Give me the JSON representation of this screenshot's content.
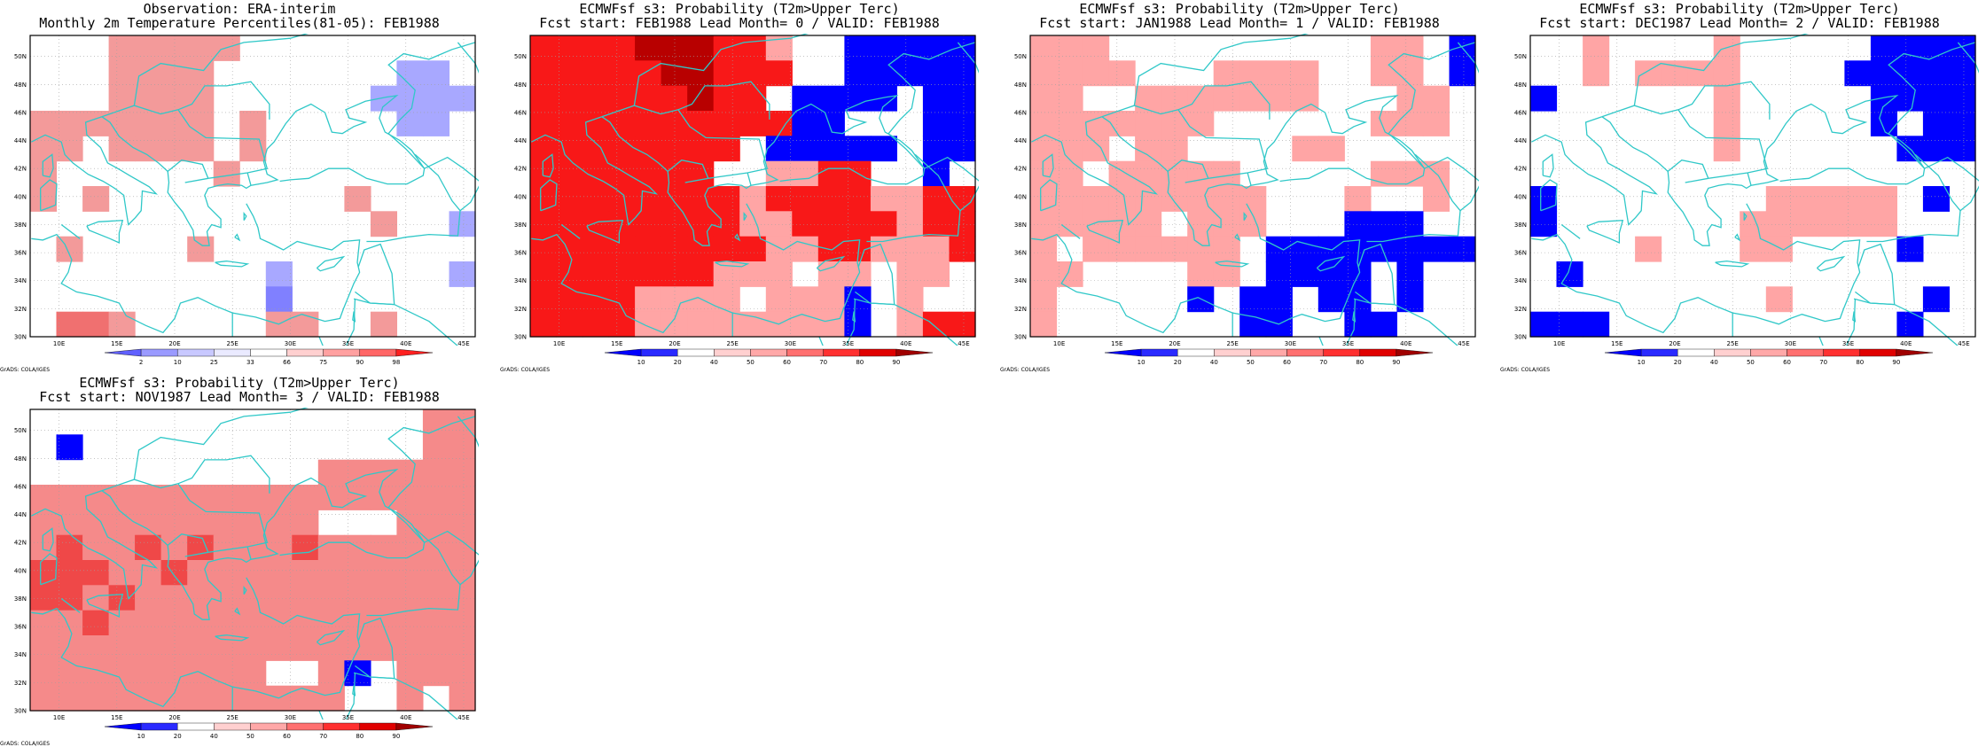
{
  "panels": [
    {
      "id": "obs",
      "title1": "Observation: ERA-interim",
      "title2": "Monthly 2m Temperature Percentiles(81-05): FEB1988",
      "colorbar_labels": [
        "2",
        "10",
        "25",
        "33",
        "66",
        "75",
        "90",
        "98"
      ],
      "colorbar_colors": [
        "#6060ff",
        "#9a9aff",
        "#c8c8ff",
        "#eaeaff",
        "#ffffff",
        "#ffd0d0",
        "#ffa0a0",
        "#ff6666",
        "#ff2020"
      ],
      "credit": "GrADS: COLA/IGES"
    },
    {
      "id": "lead0",
      "title1": "ECMWFsf s3: Probability (T2m>Upper Terc)",
      "title2": "Fcst start: FEB1988  Lead Month= 0 / VALID: FEB1988",
      "colorbar_labels": [
        "10",
        "20",
        "40",
        "50",
        "60",
        "70",
        "80",
        "90"
      ],
      "colorbar_colors": [
        "#0000ff",
        "#2a2aff",
        "#ffffff",
        "#ffd0d0",
        "#ffa8a8",
        "#ff7070",
        "#ff3030",
        "#e00000",
        "#a00000"
      ],
      "credit": "GrADS: COLA/IGES"
    },
    {
      "id": "lead1",
      "title1": "ECMWFsf s3: Probability (T2m>Upper Terc)",
      "title2": "Fcst start: JAN1988  Lead Month= 1 / VALID: FEB1988",
      "colorbar_labels": [
        "10",
        "20",
        "40",
        "50",
        "60",
        "70",
        "80",
        "90"
      ],
      "colorbar_colors": [
        "#0000ff",
        "#2a2aff",
        "#ffffff",
        "#ffd0d0",
        "#ffa8a8",
        "#ff7070",
        "#ff3030",
        "#e00000",
        "#a00000"
      ],
      "credit": "GrADS: COLA/IGES"
    },
    {
      "id": "lead2",
      "title1": "ECMWFsf s3: Probability (T2m>Upper Terc)",
      "title2": "Fcst start: DEC1987  Lead Month= 2 / VALID: FEB1988",
      "colorbar_labels": [
        "10",
        "20",
        "40",
        "50",
        "60",
        "70",
        "80",
        "90"
      ],
      "colorbar_colors": [
        "#0000ff",
        "#2a2aff",
        "#ffffff",
        "#ffd0d0",
        "#ffa8a8",
        "#ff7070",
        "#ff3030",
        "#e00000",
        "#a00000"
      ],
      "credit": "GrADS: COLA/IGES"
    },
    {
      "id": "lead3",
      "title1": "ECMWFsf s3: Probability (T2m>Upper Terc)",
      "title2": "Fcst start: NOV1987  Lead Month= 3 / VALID: FEB1988",
      "colorbar_labels": [
        "10",
        "20",
        "40",
        "50",
        "60",
        "70",
        "80",
        "90"
      ],
      "colorbar_colors": [
        "#0000ff",
        "#2a2aff",
        "#ffffff",
        "#ffd0d0",
        "#ffa8a8",
        "#ff7070",
        "#ff3030",
        "#e00000",
        "#a00000"
      ],
      "credit": "GrADS: COLA/IGES"
    }
  ],
  "map": {
    "lon_range": [
      7.5,
      46
    ],
    "lat_range": [
      30,
      51.5
    ],
    "lon_labels": [
      "10E",
      "15E",
      "20E",
      "25E",
      "30E",
      "35E",
      "40E",
      "45E"
    ],
    "lat_labels": [
      "30N",
      "32N",
      "34N",
      "36N",
      "38N",
      "40N",
      "42N",
      "44N",
      "46N",
      "48N",
      "50N"
    ],
    "coastline_color": "#30c8c8",
    "grid_color": "#a0a0a0"
  },
  "cell_palette": {
    "r1": "#ffb0b0",
    "r2": "#f88888",
    "r3": "#ff6060",
    "r4": "#ff2020",
    "r5": "#e80000",
    "r6": "#b00000",
    "b1": "#a8a8ff",
    "b2": "#4040ff",
    "b3": "#0000ff"
  },
  "grids": {
    "obs": [
      "...rrrrr.........",
      "...rrrr.......bb.",
      "...rrrr......bbbb",
      "rrrrrrr.r.....bb.",
      "rr.rrrr.r........",
      "r......r.........",
      "r.r.........r....",
      ".............r..b",
      ".r....r..........",
      ".........b......b",
      ".........B.......",
      ".RRr.....rr..r..."
    ],
    "lead0": [
      "RRRR###RRr..BBBBB",
      "RRRRR##RRR..BBBBB",
      "RRRRRR#RR.BBBB.BB",
      "RRRRRRRRRRBB...BB",
      "RRRRRRRR.BBBBB.BB",
      "RRRRRRR..rrRR..B.",
      "RRRRRRRRrRRRRrrRR",
      "RRRRRRRRrrRRRRrRR",
      "RRRRRRRRRrrRRrrrR",
      "RRRRRRRrrr.rr.rr.",
      "RRRRrrrr.rrrB.r..",
      "RRRRrrrrrrrrB.rRR"
    ],
    "lead1": [
      "rrr..........rr.B",
      "rrrr...rrrr..rr.B",
      "rr..rrrrrrr...rr.",
      "rrrrrrr......rrr.",
      "rrr.rr....rr.....",
      "rr.rrrrr.....rrr.",
      "rrrrrrrrr...r..r.",
      "rrrrr.rrr...BBB..",
      "r.rrrrrr.BBBBBBBB",
      "rr....rr.BBBB.B..",
      "r.....B.BB.BB.B..",
      "r.......BB..BB..."
    ],
    "lead2": [
      "..r....r.....BBBB",
      "..r.rrrr....BBBBB",
      "B......r.....BBBB",
      ".......r.....B.BB",
      ".......r......BBB",
      ".................",
      "B........rrrrr.B.",
      "B.......rrrrrr...",
      "....r...rr....B..",
      ".B...............",
      ".........r.....B.",
      "BBB...........B.."
    ],
    "lead3": [
      "...............rr",
      ".B.............rr",
      "...........rrrrrr",
      "rrrrrrrrrrrrrrrrr",
      "rrrrrrrrrrr...rrr",
      "rRrrRrRrrrRrrrrrr",
      "RRRrrRrrrrrrrrrrr",
      "RRrRrrrrrrrrrrrrr",
      "rrRrrrrrrrrrrrrrr",
      "rrrrrrrrrrrrrrrrr",
      "rrrrrrrrr..rB.rrr",
      "rrrrrrrrrrrr..r.r"
    ]
  }
}
